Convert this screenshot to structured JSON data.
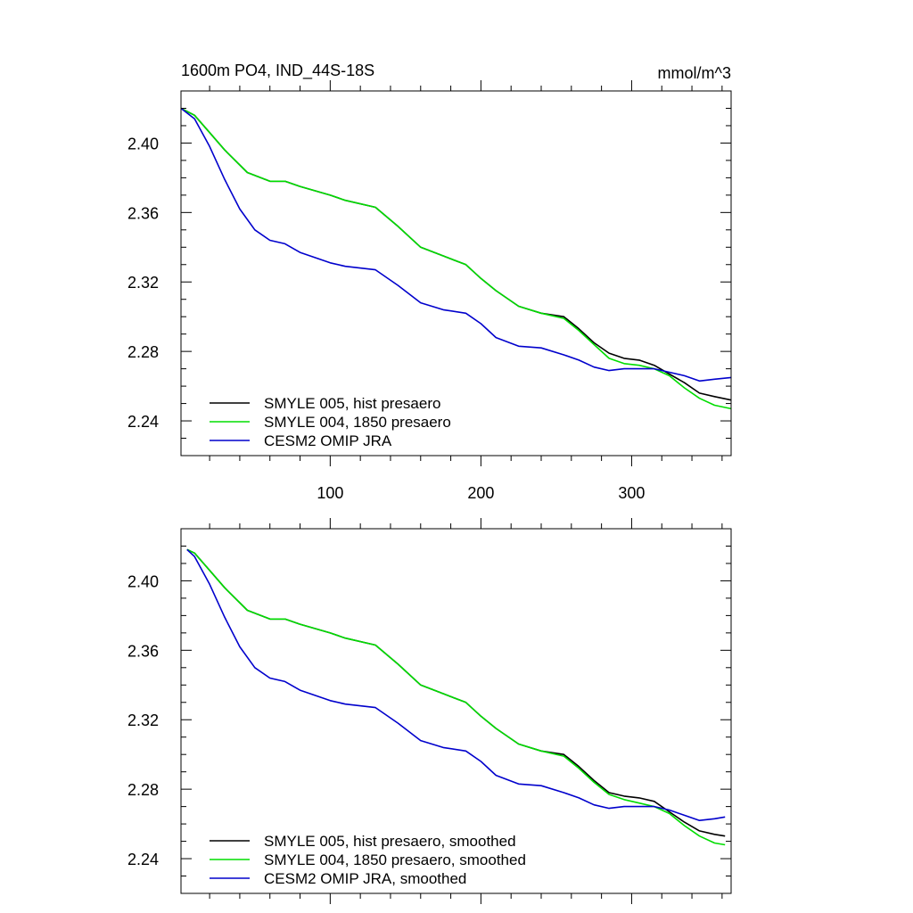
{
  "colors": {
    "hist": "#000000",
    "pre1850": "#00dd00",
    "omip": "#0000cc",
    "axis": "#000000"
  },
  "chart_data": [
    {
      "type": "line",
      "title_left": "1600m PO4, IND_44S-18S",
      "title_right": "mmol/m^3",
      "xlim": [
        1,
        366
      ],
      "ylim": [
        2.22,
        2.43
      ],
      "xticks": [
        100,
        200,
        300
      ],
      "xtick_labels": [
        "100",
        "200",
        "300"
      ],
      "yticks": [
        2.24,
        2.28,
        2.32,
        2.36,
        2.4
      ],
      "ytick_labels": [
        "2.24",
        "2.28",
        "2.32",
        "2.36",
        "2.40"
      ],
      "legend_position": "bottom-left",
      "series": [
        {
          "name": "SMYLE 005, hist presaero",
          "color_key": "hist",
          "x": [
            1,
            10,
            20,
            30,
            45,
            60,
            70,
            80,
            100,
            110,
            130,
            145,
            160,
            175,
            190,
            200,
            210,
            225,
            240,
            255,
            265,
            275,
            285,
            295,
            305,
            315,
            325,
            335,
            345,
            355,
            366
          ],
          "y": [
            2.42,
            2.416,
            2.406,
            2.396,
            2.383,
            2.378,
            2.378,
            2.375,
            2.37,
            2.367,
            2.363,
            2.352,
            2.34,
            2.335,
            2.33,
            2.322,
            2.315,
            2.306,
            2.302,
            2.3,
            2.293,
            2.285,
            2.279,
            2.276,
            2.275,
            2.272,
            2.267,
            2.262,
            2.256,
            2.254,
            2.252
          ]
        },
        {
          "name": "SMYLE 004, 1850 presaero",
          "color_key": "pre1850",
          "x": [
            1,
            10,
            20,
            30,
            45,
            60,
            70,
            80,
            100,
            110,
            130,
            145,
            160,
            175,
            190,
            200,
            210,
            225,
            240,
            255,
            265,
            275,
            285,
            295,
            305,
            315,
            325,
            335,
            345,
            355,
            366
          ],
          "y": [
            2.42,
            2.416,
            2.406,
            2.396,
            2.383,
            2.378,
            2.378,
            2.375,
            2.37,
            2.367,
            2.363,
            2.352,
            2.34,
            2.335,
            2.33,
            2.322,
            2.315,
            2.306,
            2.302,
            2.299,
            2.292,
            2.284,
            2.276,
            2.273,
            2.272,
            2.27,
            2.266,
            2.259,
            2.253,
            2.249,
            2.247
          ]
        },
        {
          "name": "CESM2 OMIP JRA",
          "color_key": "omip",
          "x": [
            1,
            10,
            20,
            30,
            40,
            50,
            60,
            70,
            80,
            100,
            110,
            130,
            145,
            160,
            175,
            190,
            200,
            210,
            225,
            240,
            255,
            265,
            275,
            285,
            295,
            305,
            315,
            325,
            335,
            345,
            355,
            366
          ],
          "y": [
            2.42,
            2.414,
            2.398,
            2.379,
            2.362,
            2.35,
            2.344,
            2.342,
            2.337,
            2.331,
            2.329,
            2.327,
            2.318,
            2.308,
            2.304,
            2.302,
            2.296,
            2.288,
            2.283,
            2.282,
            2.278,
            2.275,
            2.271,
            2.269,
            2.27,
            2.27,
            2.27,
            2.268,
            2.266,
            2.263,
            2.264,
            2.265
          ]
        }
      ]
    },
    {
      "type": "line",
      "title_left": "",
      "title_right": "",
      "xlim": [
        1,
        366
      ],
      "ylim": [
        2.22,
        2.43
      ],
      "xticks": [
        100,
        200,
        300
      ],
      "xtick_labels": [],
      "yticks": [
        2.24,
        2.28,
        2.32,
        2.36,
        2.4
      ],
      "ytick_labels": [
        "2.24",
        "2.28",
        "2.32",
        "2.36",
        "2.40"
      ],
      "legend_position": "bottom-left",
      "series": [
        {
          "name": "SMYLE 005, hist presaero, smoothed",
          "color_key": "hist",
          "x": [
            5,
            10,
            20,
            30,
            45,
            60,
            70,
            80,
            100,
            110,
            130,
            145,
            160,
            175,
            190,
            200,
            210,
            225,
            240,
            255,
            265,
            275,
            285,
            295,
            305,
            315,
            325,
            335,
            345,
            355,
            362
          ],
          "y": [
            2.418,
            2.416,
            2.406,
            2.396,
            2.383,
            2.378,
            2.378,
            2.375,
            2.37,
            2.367,
            2.363,
            2.352,
            2.34,
            2.335,
            2.33,
            2.322,
            2.315,
            2.306,
            2.302,
            2.3,
            2.293,
            2.285,
            2.278,
            2.276,
            2.275,
            2.273,
            2.267,
            2.261,
            2.256,
            2.254,
            2.253
          ]
        },
        {
          "name": "SMYLE 004, 1850 presaero, smoothed",
          "color_key": "pre1850",
          "x": [
            5,
            10,
            20,
            30,
            45,
            60,
            70,
            80,
            100,
            110,
            130,
            145,
            160,
            175,
            190,
            200,
            210,
            225,
            240,
            255,
            265,
            275,
            285,
            295,
            305,
            315,
            325,
            335,
            345,
            355,
            362
          ],
          "y": [
            2.418,
            2.416,
            2.406,
            2.396,
            2.383,
            2.378,
            2.378,
            2.375,
            2.37,
            2.367,
            2.363,
            2.352,
            2.34,
            2.335,
            2.33,
            2.322,
            2.315,
            2.306,
            2.302,
            2.299,
            2.292,
            2.284,
            2.277,
            2.274,
            2.272,
            2.27,
            2.266,
            2.259,
            2.253,
            2.249,
            2.248
          ]
        },
        {
          "name": "CESM2 OMIP JRA, smoothed",
          "color_key": "omip",
          "x": [
            5,
            10,
            20,
            30,
            40,
            50,
            60,
            70,
            80,
            100,
            110,
            130,
            145,
            160,
            175,
            190,
            200,
            210,
            225,
            240,
            255,
            265,
            275,
            285,
            295,
            305,
            315,
            325,
            335,
            345,
            355,
            362
          ],
          "y": [
            2.418,
            2.414,
            2.398,
            2.379,
            2.362,
            2.35,
            2.344,
            2.342,
            2.337,
            2.331,
            2.329,
            2.327,
            2.318,
            2.308,
            2.304,
            2.302,
            2.296,
            2.288,
            2.283,
            2.282,
            2.278,
            2.275,
            2.271,
            2.269,
            2.27,
            2.27,
            2.27,
            2.268,
            2.265,
            2.262,
            2.263,
            2.264
          ]
        }
      ]
    }
  ]
}
